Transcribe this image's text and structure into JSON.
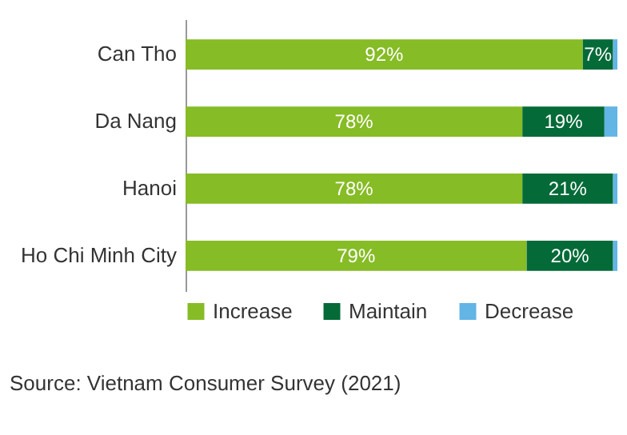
{
  "chart_data": {
    "type": "bar",
    "orientation": "horizontal",
    "stacked": true,
    "categories": [
      "Can Tho",
      "Da Nang",
      "Hanoi",
      "Ho Chi Minh City"
    ],
    "series": [
      {
        "name": "Increase",
        "color": "#86bc25",
        "values": [
          92,
          78,
          78,
          79
        ],
        "value_labels": [
          "92%",
          "78%",
          "78%",
          "79%"
        ]
      },
      {
        "name": "Maintain",
        "color": "#046a38",
        "values": [
          7,
          19,
          21,
          20
        ],
        "value_labels": [
          "7%",
          "19%",
          "21%",
          "20%"
        ]
      },
      {
        "name": "Decrease",
        "color": "#62b5e5",
        "values": [
          1,
          3,
          1,
          1
        ],
        "value_labels": [
          null,
          null,
          null,
          null
        ]
      }
    ],
    "legend": "bottom left",
    "annotations": [
      "Source: Vietnam Consumer Survey (2021)"
    ]
  }
}
